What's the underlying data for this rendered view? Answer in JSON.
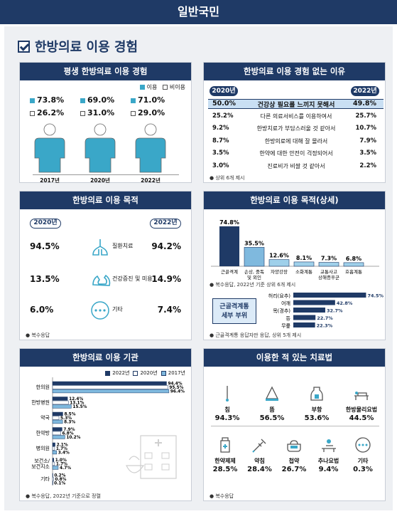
{
  "header": {
    "title": "일반국민"
  },
  "section": {
    "title": "한방의료 이용 경험"
  },
  "colors": {
    "navy": "#1f3a66",
    "teal": "#3aa7c8",
    "light": "#7fb9de"
  },
  "experience": {
    "title": "평생 한방의료 이용 경험",
    "legend": {
      "use": "이용",
      "nonuse": "비이용"
    },
    "chart_data": {
      "type": "bar",
      "categories": [
        "2017년",
        "2020년",
        "2022년"
      ],
      "series": [
        {
          "name": "이용",
          "values": [
            73.8,
            69.0,
            71.0
          ]
        },
        {
          "name": "비이용",
          "values": [
            26.2,
            31.0,
            29.0
          ]
        }
      ],
      "use_labels": [
        "73.8%",
        "69.0%",
        "71.0%"
      ],
      "nonuse_labels": [
        "26.2%",
        "31.0%",
        "29.0%"
      ]
    }
  },
  "reasons": {
    "title": "한방의료 이용 경험 없는 이유",
    "year_left": "2020년",
    "year_right": "2022년",
    "rows": [
      {
        "label": "건강상 필요를 느끼지 못해서",
        "v2020": "50.0%",
        "v2022": "49.8%"
      },
      {
        "label": "다른 의료서비스를 이용하여서",
        "v2020": "25.2%",
        "v2022": "25.7%"
      },
      {
        "label": "한방치료가 부담스러울 것 같아서",
        "v2020": "9.2%",
        "v2022": "10.7%"
      },
      {
        "label": "한방의료에 대해 잘 몰라서",
        "v2020": "8.7%",
        "v2022": "7.9%"
      },
      {
        "label": "한약에 대한 안전이 걱정되어서",
        "v2020": "3.5%",
        "v2022": "3.5%"
      },
      {
        "label": "진료비가 비쌀 것 같아서",
        "v2020": "3.0%",
        "v2022": "2.2%"
      }
    ],
    "footnote": "상위 6개 제시"
  },
  "purpose": {
    "title": "한방의료 이용 목적",
    "year_left": "2020년",
    "year_right": "2022년",
    "rows": [
      {
        "label": "질환치료",
        "icon": "lungs-icon",
        "v2020": "94.5%",
        "v2022": "94.2%"
      },
      {
        "label": "건강증진 및 미용",
        "icon": "muscle-icon",
        "v2020": "13.5%",
        "v2022": "14.9%"
      },
      {
        "label": "기타",
        "icon": "dots-icon",
        "v2020": "6.0%",
        "v2022": "7.4%"
      }
    ],
    "footnote": "복수응답"
  },
  "purpose_detail": {
    "title": "한방의료 이용 목적(상세)",
    "chart_data": {
      "type": "bar",
      "categories": [
        "근골격계",
        "손상, 중독 및 외인",
        "자양강장",
        "소화계통",
        "교통사고 상해증후군",
        "호흡계통"
      ],
      "values": [
        74.8,
        35.5,
        12.6,
        8.1,
        7.3,
        6.8
      ],
      "labels": [
        "74.8%",
        "35.5%",
        "12.6%",
        "8.1%",
        "7.3%",
        "6.8%"
      ],
      "ylim": [
        0,
        80
      ]
    },
    "footnote1": "복수응답, 2022년 기준 상위 6개 제시",
    "sub_label_line1": "근골격계통",
    "sub_label_line2": "세부 부위",
    "sub_chart": {
      "type": "bar",
      "categories": [
        "허리(요추)",
        "어깨",
        "목(경추)",
        "등",
        "무릎"
      ],
      "values": [
        74.5,
        42.8,
        32.7,
        22.7,
        22.3
      ],
      "labels": [
        "74.5%",
        "42.8%",
        "32.7%",
        "22.7%",
        "22.3%"
      ],
      "xlim": [
        0,
        80
      ]
    },
    "footnote2": "근골격계통 응답자만 응답, 상위 5개 제시"
  },
  "institution": {
    "title": "한방의료 이용 기관",
    "chart_data": {
      "type": "bar",
      "categories": [
        "한의원",
        "한방병원",
        "약국",
        "한약방",
        "병의원",
        "보건소/보건지소",
        "기타"
      ],
      "series": [
        {
          "name": "2022년",
          "values": [
            94.4,
            12.4,
            8.5,
            7.9,
            2.1,
            1.0,
            0.2
          ],
          "labels": [
            "94.4%",
            "12.4%",
            "8.5%",
            "7.9%",
            "2.1%",
            "1.0%",
            "0.2%"
          ]
        },
        {
          "name": "2020년",
          "values": [
            95.5,
            13.1,
            5.3,
            6.8,
            1.7,
            1.7,
            0.8
          ],
          "labels": [
            "95.5%",
            "13.1%",
            "5.3%",
            "6.8%",
            "1.7%",
            "1.7%",
            "0.8%"
          ]
        },
        {
          "name": "2017년",
          "values": [
            96.4,
            15.5,
            8.3,
            10.2,
            3.4,
            4.7,
            0.1
          ],
          "labels": [
            "96.4%",
            "15.5%",
            "8.3%",
            "10.2%",
            "3.4%",
            "4.7%",
            "0.1%"
          ]
        }
      ],
      "xlim": [
        0,
        100
      ]
    },
    "footnote": "복수응답, 2022년 기준으로 정렬"
  },
  "treatment": {
    "title": "이용한 적 있는 치료법",
    "items": [
      {
        "label": "침",
        "value": "94.3%",
        "icon": "needle-icon"
      },
      {
        "label": "뜸",
        "value": "56.5%",
        "icon": "moxibustion-icon"
      },
      {
        "label": "부항",
        "value": "53.6%",
        "icon": "cupping-icon"
      },
      {
        "label": "한방물리요법",
        "value": "44.5%",
        "icon": "therapy-bed-icon"
      },
      {
        "label": "한약제제",
        "value": "28.5%",
        "icon": "medicine-bottle-icon"
      },
      {
        "label": "약침",
        "value": "28.4%",
        "icon": "syringe-icon"
      },
      {
        "label": "첩약",
        "value": "26.7%",
        "icon": "herbal-pot-icon"
      },
      {
        "label": "추나요법",
        "value": "9.4%",
        "icon": "chuna-icon"
      },
      {
        "label": "기타",
        "value": "0.3%",
        "icon": "dots-icon"
      }
    ],
    "footnote": "복수응답"
  }
}
